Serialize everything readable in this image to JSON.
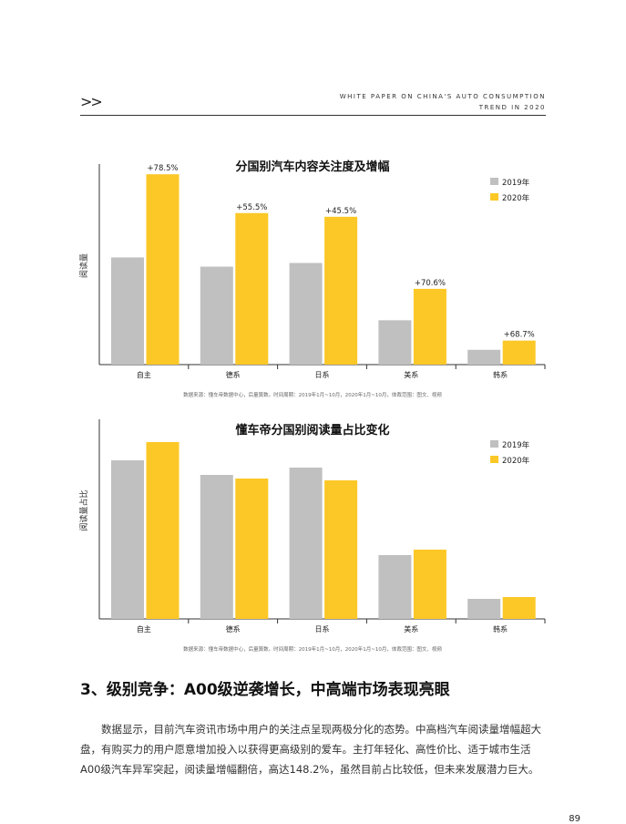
{
  "header": {
    "chevron": ">>",
    "line1": "WHITE PAPER ON CHINA'S AUTO CONSUMPTION",
    "line2": "TREND IN 2020"
  },
  "colors": {
    "y2019": "#c0c0c0",
    "y2020": "#fcc827"
  },
  "chart_data": [
    {
      "type": "bar",
      "title": "分国别汽车内容关注度及增幅",
      "ylabel": "阅读量",
      "categories": [
        "自主",
        "德系",
        "日系",
        "美系",
        "韩系"
      ],
      "series": [
        {
          "name": "2019年",
          "values": [
            58,
            53,
            55,
            24,
            8
          ]
        },
        {
          "name": "2020年",
          "values": [
            103,
            82,
            80,
            41,
            13
          ]
        }
      ],
      "annotations": [
        "+78.5%",
        "+55.5%",
        "+45.5%",
        "+70.6%",
        "+68.7%"
      ],
      "ylim": [
        0,
        110
      ],
      "grid": false,
      "legend": "top-right",
      "source": "数据来源：懂车帝数据中心，后量算数。时间周期：2019年1月~10月，2020年1月~10月，体裁范围：图文、视频"
    },
    {
      "type": "bar",
      "title": "懂车帝分国别阅读量占比变化",
      "ylabel": "阅读量占比",
      "categories": [
        "自主",
        "德系",
        "日系",
        "美系",
        "韩系"
      ],
      "series": [
        {
          "name": "2019年",
          "values": [
            87,
            79,
            83,
            35,
            11
          ]
        },
        {
          "name": "2020年",
          "values": [
            97,
            77,
            76,
            38,
            12
          ]
        }
      ],
      "ylim": [
        0,
        100
      ],
      "grid": false,
      "legend": "top-right",
      "source": "数据来源：懂车帝数据中心，后量算数。时间周期：2019年1月~10月，2020年1月~10月，体裁范围：图文、视频"
    }
  ],
  "section": {
    "title": "3、级别竞争：A00级逆袭增长，中高端市场表现亮眼",
    "body": "数据显示，目前汽车资讯市场中用户的关注点呈现两极分化的态势。中高档汽车阅读量增幅超大盘，有购买力的用户愿意增加投入以获得更高级别的爱车。主打年轻化、高性价比、适于城市生活A00级汽车异军突起，阅读量增幅翻倍，高达148.2%，虽然目前占比较低，但未来发展潜力巨大。"
  },
  "page_number": "89"
}
